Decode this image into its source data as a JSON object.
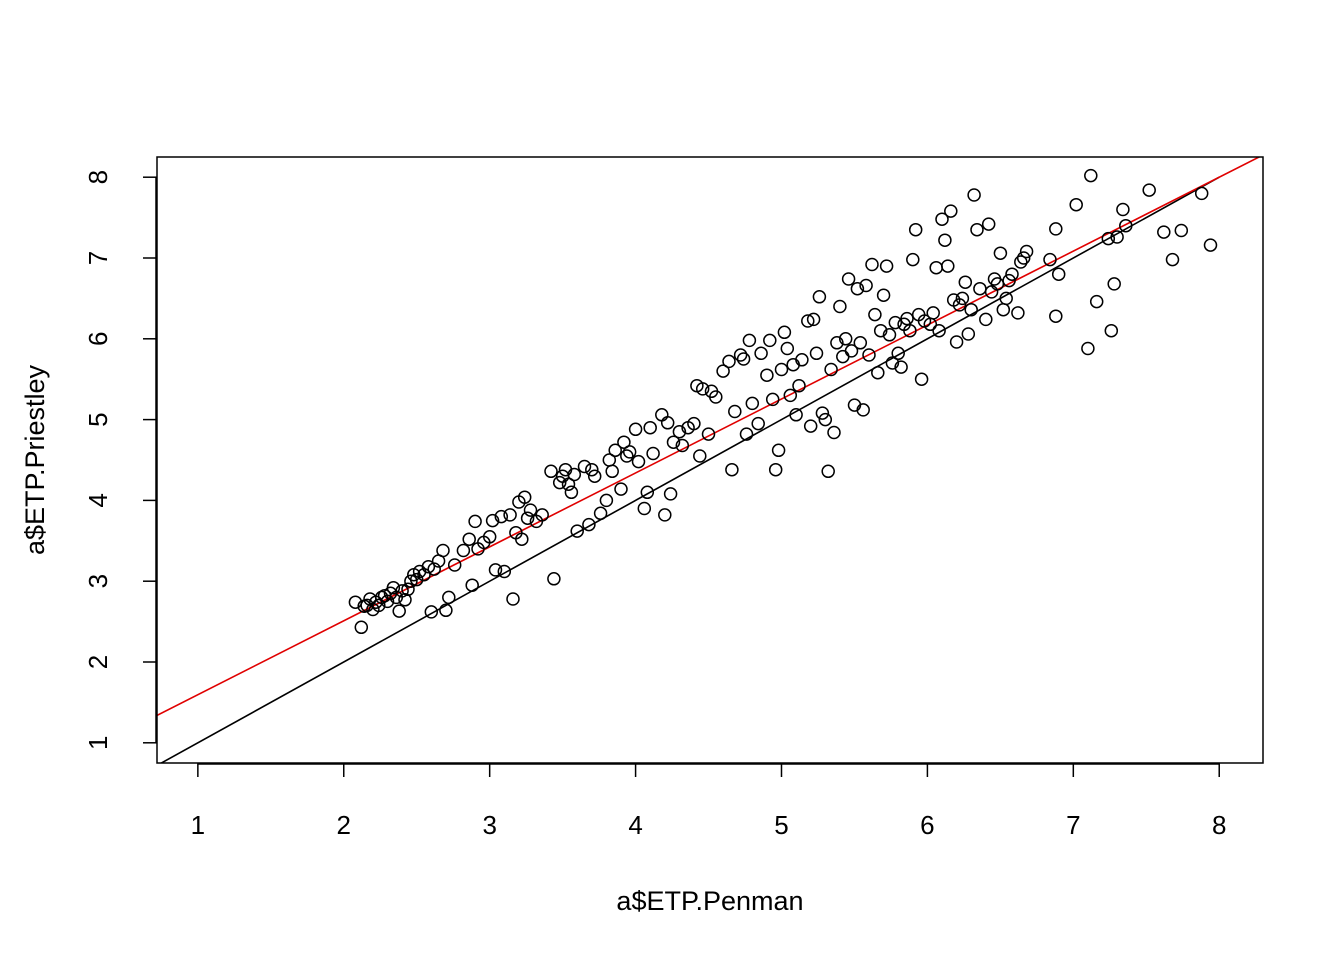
{
  "chart_data": {
    "type": "scatter",
    "title": "",
    "xlabel": "a$ETP.Penman",
    "ylabel": "a$ETP.Priestley",
    "xlim": [
      0.72,
      8.3
    ],
    "ylim": [
      0.75,
      8.25
    ],
    "xticks": [
      1,
      2,
      3,
      4,
      5,
      6,
      7,
      8
    ],
    "yticks": [
      1,
      2,
      3,
      4,
      5,
      6,
      7,
      8
    ],
    "grid": false,
    "legend": "none",
    "point_color": "#000000",
    "lines": [
      {
        "kind": "identity",
        "intercept": 0,
        "slope": 1,
        "color": "#000000"
      },
      {
        "kind": "fit",
        "intercept": 0.68,
        "slope": 0.915,
        "color": "#e00000"
      }
    ],
    "points": [
      [
        2.08,
        2.74
      ],
      [
        2.12,
        2.43
      ],
      [
        2.14,
        2.69
      ],
      [
        2.16,
        2.7
      ],
      [
        2.18,
        2.78
      ],
      [
        2.2,
        2.65
      ],
      [
        2.22,
        2.74
      ],
      [
        2.24,
        2.7
      ],
      [
        2.26,
        2.8
      ],
      [
        2.28,
        2.82
      ],
      [
        2.3,
        2.75
      ],
      [
        2.32,
        2.85
      ],
      [
        2.34,
        2.92
      ],
      [
        2.36,
        2.8
      ],
      [
        2.38,
        2.63
      ],
      [
        2.4,
        2.88
      ],
      [
        2.42,
        2.77
      ],
      [
        2.44,
        2.9
      ],
      [
        2.46,
        3.0
      ],
      [
        2.48,
        3.08
      ],
      [
        2.5,
        3.02
      ],
      [
        2.52,
        3.12
      ],
      [
        2.55,
        3.08
      ],
      [
        2.58,
        3.18
      ],
      [
        2.6,
        2.62
      ],
      [
        2.62,
        3.15
      ],
      [
        2.65,
        3.25
      ],
      [
        2.68,
        3.38
      ],
      [
        2.7,
        2.64
      ],
      [
        2.72,
        2.8
      ],
      [
        2.76,
        3.2
      ],
      [
        2.82,
        3.38
      ],
      [
        2.86,
        3.52
      ],
      [
        2.88,
        2.95
      ],
      [
        2.9,
        3.74
      ],
      [
        2.92,
        3.4
      ],
      [
        2.96,
        3.48
      ],
      [
        3.0,
        3.55
      ],
      [
        3.02,
        3.75
      ],
      [
        3.04,
        3.14
      ],
      [
        3.08,
        3.8
      ],
      [
        3.1,
        3.12
      ],
      [
        3.14,
        3.82
      ],
      [
        3.16,
        2.78
      ],
      [
        3.18,
        3.6
      ],
      [
        3.2,
        3.98
      ],
      [
        3.22,
        3.52
      ],
      [
        3.24,
        4.04
      ],
      [
        3.26,
        3.78
      ],
      [
        3.28,
        3.88
      ],
      [
        3.32,
        3.74
      ],
      [
        3.36,
        3.82
      ],
      [
        3.42,
        4.36
      ],
      [
        3.44,
        3.03
      ],
      [
        3.48,
        4.22
      ],
      [
        3.5,
        4.3
      ],
      [
        3.52,
        4.38
      ],
      [
        3.54,
        4.2
      ],
      [
        3.56,
        4.1
      ],
      [
        3.58,
        4.32
      ],
      [
        3.6,
        3.62
      ],
      [
        3.65,
        4.42
      ],
      [
        3.68,
        3.7
      ],
      [
        3.7,
        4.38
      ],
      [
        3.72,
        4.3
      ],
      [
        3.76,
        3.84
      ],
      [
        3.8,
        4.0
      ],
      [
        3.82,
        4.5
      ],
      [
        3.84,
        4.36
      ],
      [
        3.86,
        4.62
      ],
      [
        3.9,
        4.14
      ],
      [
        3.92,
        4.72
      ],
      [
        3.94,
        4.55
      ],
      [
        3.96,
        4.6
      ],
      [
        4.0,
        4.88
      ],
      [
        4.02,
        4.48
      ],
      [
        4.06,
        3.9
      ],
      [
        4.08,
        4.1
      ],
      [
        4.1,
        4.9
      ],
      [
        4.12,
        4.58
      ],
      [
        4.18,
        5.06
      ],
      [
        4.2,
        3.82
      ],
      [
        4.22,
        4.96
      ],
      [
        4.24,
        4.08
      ],
      [
        4.26,
        4.72
      ],
      [
        4.3,
        4.85
      ],
      [
        4.32,
        4.68
      ],
      [
        4.36,
        4.9
      ],
      [
        4.4,
        4.95
      ],
      [
        4.42,
        5.42
      ],
      [
        4.44,
        4.55
      ],
      [
        4.46,
        5.38
      ],
      [
        4.5,
        4.82
      ],
      [
        4.52,
        5.35
      ],
      [
        4.55,
        5.28
      ],
      [
        4.6,
        5.6
      ],
      [
        4.64,
        5.72
      ],
      [
        4.66,
        4.38
      ],
      [
        4.68,
        5.1
      ],
      [
        4.72,
        5.8
      ],
      [
        4.74,
        5.75
      ],
      [
        4.76,
        4.82
      ],
      [
        4.78,
        5.98
      ],
      [
        4.8,
        5.2
      ],
      [
        4.84,
        4.95
      ],
      [
        4.86,
        5.82
      ],
      [
        4.9,
        5.55
      ],
      [
        4.92,
        5.98
      ],
      [
        4.94,
        5.25
      ],
      [
        4.96,
        4.38
      ],
      [
        4.98,
        4.62
      ],
      [
        5.0,
        5.62
      ],
      [
        5.02,
        6.08
      ],
      [
        5.04,
        5.88
      ],
      [
        5.06,
        5.3
      ],
      [
        5.08,
        5.68
      ],
      [
        5.1,
        5.06
      ],
      [
        5.12,
        5.42
      ],
      [
        5.14,
        5.74
      ],
      [
        5.18,
        6.22
      ],
      [
        5.2,
        4.92
      ],
      [
        5.22,
        6.24
      ],
      [
        5.24,
        5.82
      ],
      [
        5.26,
        6.52
      ],
      [
        5.28,
        5.08
      ],
      [
        5.3,
        5.0
      ],
      [
        5.32,
        4.36
      ],
      [
        5.34,
        5.62
      ],
      [
        5.36,
        4.84
      ],
      [
        5.38,
        5.95
      ],
      [
        5.4,
        6.4
      ],
      [
        5.42,
        5.78
      ],
      [
        5.44,
        6.0
      ],
      [
        5.46,
        6.74
      ],
      [
        5.48,
        5.85
      ],
      [
        5.5,
        5.18
      ],
      [
        5.52,
        6.62
      ],
      [
        5.54,
        5.95
      ],
      [
        5.56,
        5.12
      ],
      [
        5.58,
        6.66
      ],
      [
        5.6,
        5.8
      ],
      [
        5.62,
        6.92
      ],
      [
        5.64,
        6.3
      ],
      [
        5.66,
        5.58
      ],
      [
        5.68,
        6.1
      ],
      [
        5.7,
        6.54
      ],
      [
        5.72,
        6.9
      ],
      [
        5.74,
        6.05
      ],
      [
        5.76,
        5.7
      ],
      [
        5.78,
        6.2
      ],
      [
        5.8,
        5.82
      ],
      [
        5.82,
        5.65
      ],
      [
        5.84,
        6.18
      ],
      [
        5.86,
        6.25
      ],
      [
        5.88,
        6.1
      ],
      [
        5.9,
        6.98
      ],
      [
        5.92,
        7.35
      ],
      [
        5.94,
        6.3
      ],
      [
        5.96,
        5.5
      ],
      [
        5.98,
        6.22
      ],
      [
        6.02,
        6.18
      ],
      [
        6.04,
        6.32
      ],
      [
        6.06,
        6.88
      ],
      [
        6.08,
        6.1
      ],
      [
        6.1,
        7.48
      ],
      [
        6.12,
        7.22
      ],
      [
        6.14,
        6.9
      ],
      [
        6.16,
        7.58
      ],
      [
        6.18,
        6.48
      ],
      [
        6.2,
        5.96
      ],
      [
        6.22,
        6.42
      ],
      [
        6.24,
        6.5
      ],
      [
        6.26,
        6.7
      ],
      [
        6.28,
        6.06
      ],
      [
        6.3,
        6.36
      ],
      [
        6.32,
        7.78
      ],
      [
        6.34,
        7.35
      ],
      [
        6.36,
        6.62
      ],
      [
        6.4,
        6.24
      ],
      [
        6.42,
        7.42
      ],
      [
        6.44,
        6.58
      ],
      [
        6.46,
        6.74
      ],
      [
        6.48,
        6.68
      ],
      [
        6.5,
        7.06
      ],
      [
        6.52,
        6.36
      ],
      [
        6.54,
        6.5
      ],
      [
        6.56,
        6.72
      ],
      [
        6.58,
        6.8
      ],
      [
        6.62,
        6.32
      ],
      [
        6.64,
        6.95
      ],
      [
        6.66,
        7.0
      ],
      [
        6.68,
        7.08
      ],
      [
        6.84,
        6.98
      ],
      [
        6.88,
        7.36
      ],
      [
        6.88,
        6.28
      ],
      [
        6.9,
        6.8
      ],
      [
        7.02,
        7.66
      ],
      [
        7.1,
        5.88
      ],
      [
        7.12,
        8.02
      ],
      [
        7.16,
        6.46
      ],
      [
        7.24,
        7.24
      ],
      [
        7.26,
        6.1
      ],
      [
        7.28,
        6.68
      ],
      [
        7.3,
        7.26
      ],
      [
        7.34,
        7.6
      ],
      [
        7.36,
        7.4
      ],
      [
        7.52,
        7.84
      ],
      [
        7.62,
        7.32
      ],
      [
        7.68,
        6.98
      ],
      [
        7.74,
        7.34
      ],
      [
        7.88,
        7.8
      ],
      [
        7.94,
        7.16
      ]
    ]
  }
}
